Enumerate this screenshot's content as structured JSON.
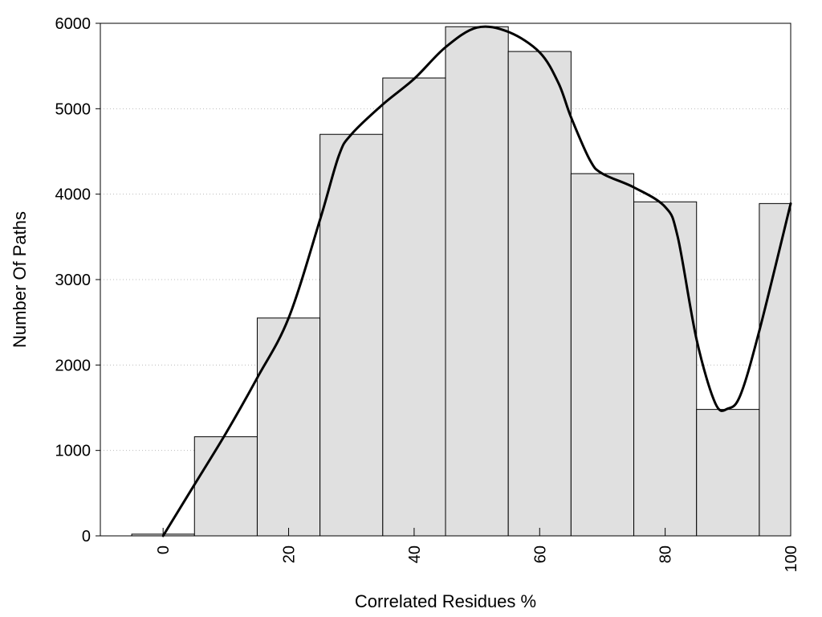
{
  "chart_data": {
    "type": "bar",
    "title": "",
    "xlabel": "Correlated Residues %",
    "ylabel": "Number Of Paths",
    "x": [
      0,
      10,
      20,
      30,
      40,
      50,
      60,
      70,
      80,
      90,
      100
    ],
    "values": [
      20,
      1160,
      2550,
      4700,
      5360,
      5960,
      5670,
      4240,
      3910,
      1480,
      3890
    ],
    "bin_width": 10,
    "xlim": [
      -10,
      100
    ],
    "ylim": [
      0,
      6000
    ],
    "xticks": [
      0,
      20,
      40,
      60,
      80,
      100
    ],
    "yticks": [
      0,
      1000,
      2000,
      3000,
      4000,
      5000,
      6000
    ],
    "grid": "horizontal dotted",
    "bar_color": "#e0e0e0",
    "curve_color": "#000000",
    "curve": {
      "x": [
        0,
        5,
        10,
        15,
        20,
        25,
        28,
        30,
        35,
        40,
        45,
        50,
        55,
        60,
        63,
        65,
        68,
        70,
        75,
        80,
        82,
        85,
        88,
        90,
        92,
        95,
        100
      ],
      "y": [
        0,
        600,
        1200,
        1850,
        2550,
        3700,
        4450,
        4700,
        5050,
        5350,
        5720,
        5950,
        5900,
        5660,
        5300,
        4900,
        4400,
        4240,
        4080,
        3850,
        3500,
        2300,
        1550,
        1490,
        1650,
        2400,
        3890
      ]
    }
  }
}
